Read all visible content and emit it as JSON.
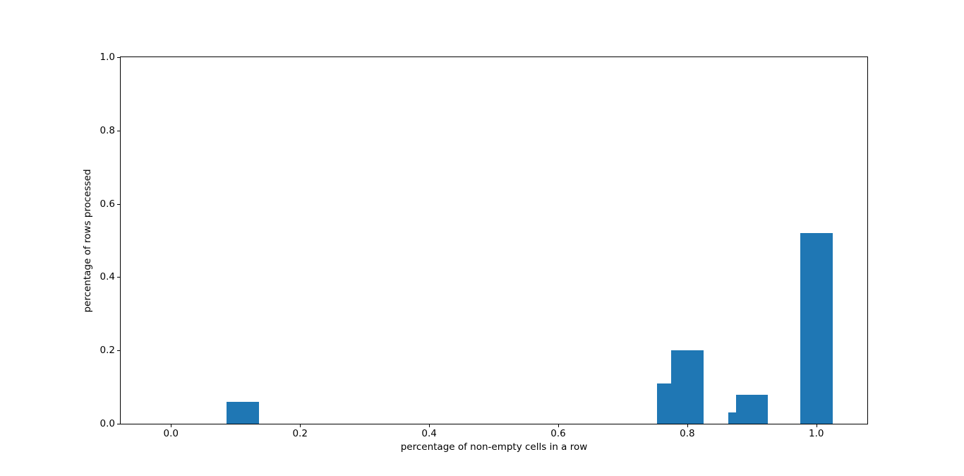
{
  "window": {
    "background": "#ffffff"
  },
  "chart_data": {
    "type": "bar",
    "title": "",
    "xlabel": "percentage of non-empty cells in a row",
    "ylabel": "percentage of rows processed",
    "x": [
      0.111,
      0.778,
      0.8,
      0.889,
      0.9,
      1.0
    ],
    "values": [
      0.06,
      0.11,
      0.2,
      0.03,
      0.08,
      0.52
    ],
    "bar_width": 0.05,
    "xlim": [
      -0.078,
      1.079
    ],
    "ylim": [
      0,
      1
    ],
    "xticks": [
      {
        "value": 0.0,
        "label": "0.0"
      },
      {
        "value": 0.2,
        "label": "0.2"
      },
      {
        "value": 0.4,
        "label": "0.4"
      },
      {
        "value": 0.6,
        "label": "0.6"
      },
      {
        "value": 0.8,
        "label": "0.8"
      },
      {
        "value": 1.0,
        "label": "1.0"
      }
    ],
    "yticks": [
      {
        "value": 0.0,
        "label": "0.0"
      },
      {
        "value": 0.2,
        "label": "0.2"
      },
      {
        "value": 0.4,
        "label": "0.4"
      },
      {
        "value": 0.6,
        "label": "0.6"
      },
      {
        "value": 0.8,
        "label": "0.8"
      },
      {
        "value": 1.0,
        "label": "1.0"
      }
    ],
    "grid": false,
    "legend": "none",
    "colors": {
      "bar": "#1f77b4",
      "spine": "#000000",
      "text": "#000000",
      "background": "#ffffff"
    }
  }
}
